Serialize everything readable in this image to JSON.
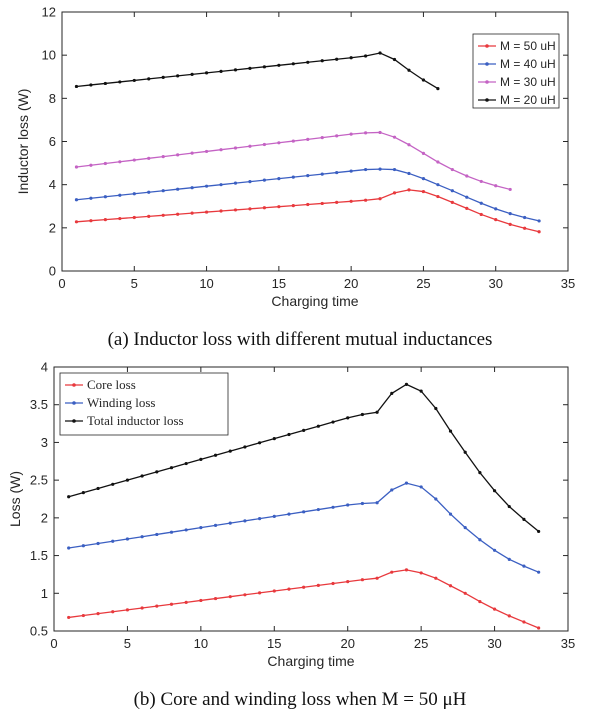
{
  "figure": {
    "caption_a": "(a) Inductor loss with different mutual inductances",
    "caption_b": "(b) Core and winding loss when M = 50 μH"
  },
  "chart_data": [
    {
      "id": "a",
      "type": "line",
      "xlabel": "Charging time",
      "ylabel": "Inductor loss (W)",
      "xlim": [
        0,
        35
      ],
      "ylim": [
        0,
        12
      ],
      "xticks": [
        0,
        5,
        10,
        15,
        20,
        25,
        30,
        35
      ],
      "yticks": [
        0,
        2,
        4,
        6,
        8,
        10,
        12
      ],
      "grid": false,
      "legend_position": "top-right",
      "legend_font": "sans",
      "series": [
        {
          "name": "M = 50 uH",
          "color": "#e8393d",
          "x": [
            1,
            2,
            3,
            4,
            5,
            6,
            7,
            8,
            9,
            10,
            11,
            12,
            13,
            14,
            15,
            16,
            17,
            18,
            19,
            20,
            21,
            22,
            23,
            24,
            25,
            26,
            27,
            28,
            29,
            30,
            31,
            32,
            33
          ],
          "y": [
            2.28,
            2.33,
            2.38,
            2.43,
            2.48,
            2.53,
            2.58,
            2.63,
            2.68,
            2.73,
            2.78,
            2.83,
            2.88,
            2.93,
            2.98,
            3.03,
            3.08,
            3.13,
            3.18,
            3.23,
            3.28,
            3.35,
            3.62,
            3.76,
            3.68,
            3.45,
            3.18,
            2.9,
            2.62,
            2.38,
            2.16,
            1.98,
            1.82
          ]
        },
        {
          "name": "M = 40 uH",
          "color": "#3b5fc2",
          "x": [
            1,
            2,
            3,
            4,
            5,
            6,
            7,
            8,
            9,
            10,
            11,
            12,
            13,
            14,
            15,
            16,
            17,
            18,
            19,
            20,
            21,
            22,
            23,
            24,
            25,
            26,
            27,
            28,
            29,
            30,
            31,
            32,
            33
          ],
          "y": [
            3.3,
            3.37,
            3.44,
            3.51,
            3.58,
            3.65,
            3.72,
            3.79,
            3.86,
            3.93,
            4.0,
            4.07,
            4.14,
            4.21,
            4.28,
            4.35,
            4.42,
            4.49,
            4.56,
            4.63,
            4.7,
            4.72,
            4.7,
            4.52,
            4.28,
            4.0,
            3.72,
            3.42,
            3.14,
            2.88,
            2.66,
            2.48,
            2.32
          ]
        },
        {
          "name": "M = 30 uH",
          "color": "#c463c4",
          "x": [
            1,
            2,
            3,
            4,
            5,
            6,
            7,
            8,
            9,
            10,
            11,
            12,
            13,
            14,
            15,
            16,
            17,
            18,
            19,
            20,
            21,
            22,
            23,
            24,
            25,
            26,
            27,
            28,
            29,
            30,
            31
          ],
          "y": [
            4.82,
            4.9,
            4.98,
            5.06,
            5.14,
            5.22,
            5.3,
            5.38,
            5.46,
            5.54,
            5.62,
            5.7,
            5.78,
            5.86,
            5.94,
            6.02,
            6.1,
            6.18,
            6.26,
            6.34,
            6.4,
            6.42,
            6.2,
            5.85,
            5.45,
            5.05,
            4.7,
            4.4,
            4.15,
            3.95,
            3.78
          ]
        },
        {
          "name": "M = 20 uH",
          "color": "#111111",
          "x": [
            1,
            2,
            3,
            4,
            5,
            6,
            7,
            8,
            9,
            10,
            11,
            12,
            13,
            14,
            15,
            16,
            17,
            18,
            19,
            20,
            21,
            22,
            23,
            24,
            25,
            26
          ],
          "y": [
            8.55,
            8.62,
            8.69,
            8.76,
            8.83,
            8.9,
            8.97,
            9.04,
            9.11,
            9.18,
            9.25,
            9.32,
            9.39,
            9.46,
            9.53,
            9.6,
            9.67,
            9.74,
            9.81,
            9.88,
            9.96,
            10.1,
            9.8,
            9.3,
            8.85,
            8.45
          ]
        }
      ]
    },
    {
      "id": "b",
      "type": "line",
      "xlabel": "Charging time",
      "ylabel": "Loss (W)",
      "xlim": [
        0,
        35
      ],
      "ylim": [
        0.5,
        4
      ],
      "xticks": [
        0,
        5,
        10,
        15,
        20,
        25,
        30,
        35
      ],
      "yticks": [
        0.5,
        1,
        1.5,
        2,
        2.5,
        3,
        3.5,
        4
      ],
      "grid": false,
      "legend_position": "top-left",
      "legend_font": "serif",
      "series": [
        {
          "name": "Core loss",
          "color": "#e8393d",
          "x": [
            1,
            2,
            3,
            4,
            5,
            6,
            7,
            8,
            9,
            10,
            11,
            12,
            13,
            14,
            15,
            16,
            17,
            18,
            19,
            20,
            21,
            22,
            23,
            24,
            25,
            26,
            27,
            28,
            29,
            30,
            31,
            32,
            33
          ],
          "y": [
            0.68,
            0.705,
            0.73,
            0.755,
            0.78,
            0.805,
            0.83,
            0.855,
            0.88,
            0.905,
            0.93,
            0.955,
            0.98,
            1.005,
            1.03,
            1.055,
            1.08,
            1.105,
            1.13,
            1.155,
            1.18,
            1.2,
            1.28,
            1.31,
            1.27,
            1.2,
            1.1,
            1.0,
            0.89,
            0.79,
            0.7,
            0.62,
            0.54
          ]
        },
        {
          "name": "Winding loss",
          "color": "#3b5fc2",
          "x": [
            1,
            2,
            3,
            4,
            5,
            6,
            7,
            8,
            9,
            10,
            11,
            12,
            13,
            14,
            15,
            16,
            17,
            18,
            19,
            20,
            21,
            22,
            23,
            24,
            25,
            26,
            27,
            28,
            29,
            30,
            31,
            32,
            33
          ],
          "y": [
            1.6,
            1.63,
            1.66,
            1.69,
            1.72,
            1.75,
            1.78,
            1.81,
            1.84,
            1.87,
            1.9,
            1.93,
            1.96,
            1.99,
            2.02,
            2.05,
            2.08,
            2.11,
            2.14,
            2.17,
            2.19,
            2.2,
            2.37,
            2.46,
            2.41,
            2.25,
            2.05,
            1.87,
            1.71,
            1.57,
            1.45,
            1.36,
            1.28
          ]
        },
        {
          "name": "Total inductor loss",
          "color": "#111111",
          "x": [
            1,
            2,
            3,
            4,
            5,
            6,
            7,
            8,
            9,
            10,
            11,
            12,
            13,
            14,
            15,
            16,
            17,
            18,
            19,
            20,
            21,
            22,
            23,
            24,
            25,
            26,
            27,
            28,
            29,
            30,
            31,
            32,
            33
          ],
          "y": [
            2.28,
            2.335,
            2.39,
            2.445,
            2.5,
            2.555,
            2.61,
            2.665,
            2.72,
            2.775,
            2.83,
            2.885,
            2.94,
            2.995,
            3.05,
            3.105,
            3.16,
            3.215,
            3.27,
            3.325,
            3.37,
            3.4,
            3.65,
            3.77,
            3.68,
            3.45,
            3.15,
            2.87,
            2.6,
            2.36,
            2.15,
            1.98,
            1.82
          ]
        }
      ]
    }
  ]
}
